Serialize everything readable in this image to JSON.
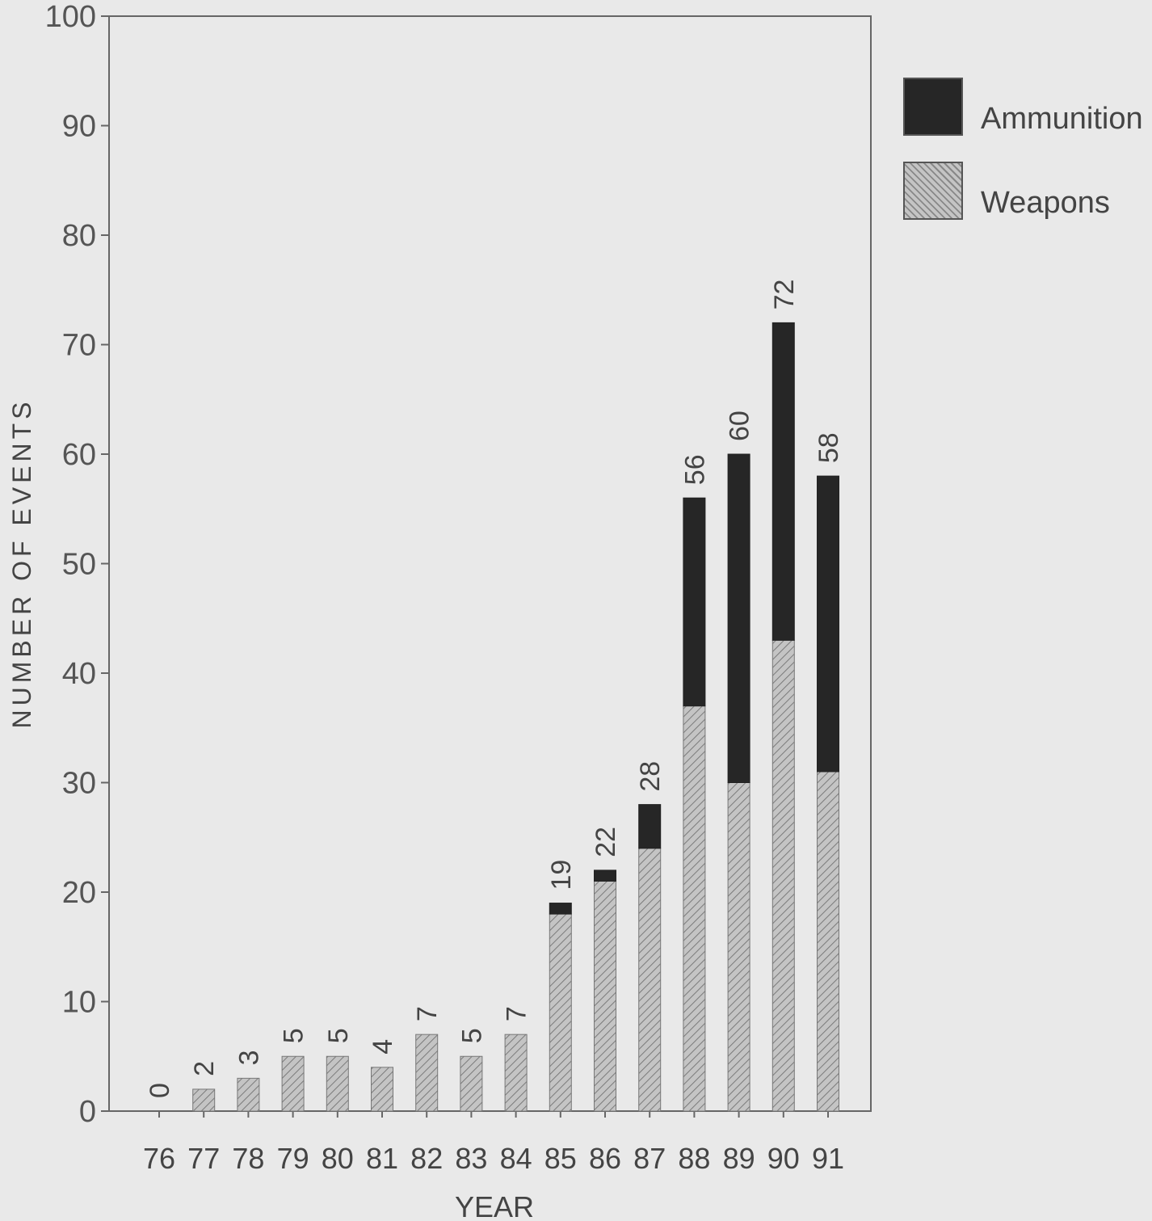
{
  "chart_data": {
    "type": "bar",
    "stacked": true,
    "categories": [
      "76",
      "77",
      "78",
      "79",
      "80",
      "81",
      "82",
      "83",
      "84",
      "85",
      "86",
      "87",
      "88",
      "89",
      "90",
      "91"
    ],
    "series": [
      {
        "name": "Weapons",
        "values": [
          0,
          2,
          3,
          5,
          5,
          4,
          7,
          5,
          7,
          18,
          21,
          24,
          37,
          30,
          43,
          31
        ]
      },
      {
        "name": "Ammunition",
        "values": [
          0,
          0,
          0,
          0,
          0,
          0,
          0,
          0,
          0,
          1,
          1,
          4,
          19,
          30,
          29,
          27
        ]
      }
    ],
    "totals": [
      0,
      2,
      3,
      5,
      5,
      4,
      7,
      5,
      7,
      19,
      22,
      28,
      56,
      60,
      72,
      58
    ],
    "title": "",
    "xlabel": "YEAR",
    "ylabel": "NUMBER OF EVENTS",
    "ylim": [
      0,
      100
    ],
    "yticks": [
      0,
      10,
      20,
      30,
      40,
      50,
      60,
      70,
      80,
      90,
      100
    ],
    "grid": false,
    "legend": {
      "position": "top-right",
      "entries": [
        "Ammunition",
        "Weapons"
      ]
    },
    "colors": {
      "Weapons": "#b8b8b8",
      "Ammunition": "#262626"
    }
  }
}
